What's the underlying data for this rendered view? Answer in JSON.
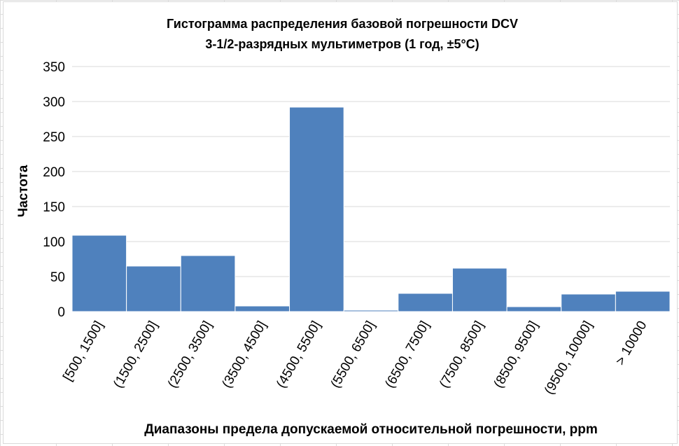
{
  "chart_data": {
    "type": "bar",
    "title_lines": [
      "Гистограмма распределения базовой погрешности DCV",
      "3-1/2-разрядных мультиметров (1 год, ±5°C)"
    ],
    "xlabel": "Диапазоны предела допускаемой относительной погрешности, ppm",
    "ylabel": "Частота",
    "categories": [
      "[500, 1500]",
      "(1500, 2500]",
      "(2500, 3500]",
      "(3500, 4500]",
      "(4500, 5500]",
      "(5500, 6500]",
      "(6500, 7500]",
      "(7500, 8500]",
      "(8500, 9500]",
      "(9500, 10000]",
      "> 10000"
    ],
    "values": [
      109,
      65,
      80,
      8,
      292,
      2,
      26,
      62,
      7,
      25,
      29
    ],
    "ylim": [
      0,
      350
    ],
    "yticks": [
      0,
      50,
      100,
      150,
      200,
      250,
      300,
      350
    ],
    "grid": true,
    "legend": "none",
    "bar_color": "#4f81bd"
  }
}
